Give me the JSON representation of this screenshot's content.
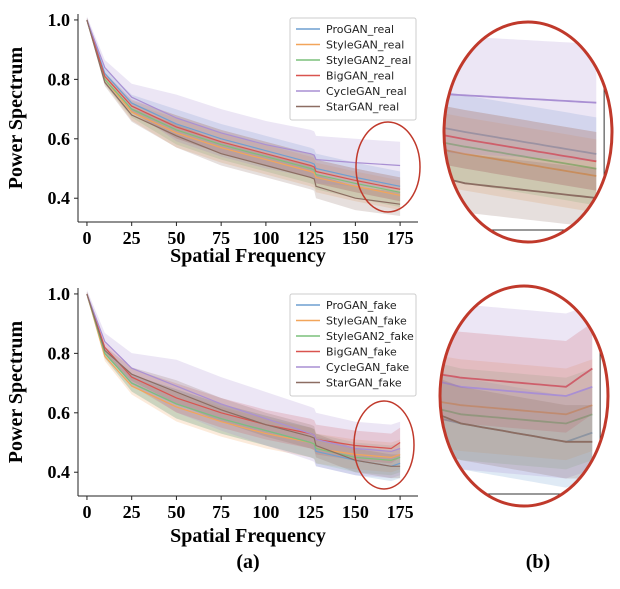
{
  "figure": {
    "panel_labels": [
      "(a)",
      "(b)"
    ]
  },
  "colors": {
    "ProGAN": "#6f9fd0",
    "StyleGAN": "#f2a55a",
    "StyleGAN2": "#7cc07c",
    "BigGAN": "#d9534f",
    "CycleGAN": "#a98fd3",
    "StarGAN": "#8c6d62",
    "zoom_ellipse": "#c0392b"
  },
  "chart_data": [
    {
      "type": "line",
      "xlabel": "Spatial Frequency",
      "ylabel": "Power Spectrum",
      "xlim": [
        -5,
        185
      ],
      "ylim": [
        0.32,
        1.02
      ],
      "xticks": [
        0,
        25,
        50,
        75,
        100,
        125,
        150,
        175
      ],
      "yticks": [
        0.4,
        0.6,
        0.8,
        1.0
      ],
      "legend_position": "top-right",
      "series": [
        {
          "name": "ProGAN_real",
          "color": "#6f9fd0",
          "x": [
            0,
            10,
            25,
            50,
            75,
            100,
            125,
            127,
            128,
            150,
            175
          ],
          "y": [
            1.0,
            0.82,
            0.72,
            0.65,
            0.6,
            0.56,
            0.52,
            0.515,
            0.5,
            0.47,
            0.44
          ],
          "band": 0.05
        },
        {
          "name": "StyleGAN_real",
          "color": "#f2a55a",
          "x": [
            0,
            10,
            25,
            50,
            75,
            100,
            125,
            127,
            128,
            150,
            175
          ],
          "y": [
            1.0,
            0.8,
            0.69,
            0.62,
            0.57,
            0.53,
            0.49,
            0.485,
            0.47,
            0.44,
            0.41
          ],
          "band": 0.05
        },
        {
          "name": "StyleGAN2_real",
          "color": "#7cc07c",
          "x": [
            0,
            10,
            25,
            50,
            75,
            100,
            125,
            127,
            128,
            150,
            175
          ],
          "y": [
            1.0,
            0.8,
            0.7,
            0.63,
            0.58,
            0.54,
            0.5,
            0.495,
            0.48,
            0.45,
            0.42
          ],
          "band": 0.05
        },
        {
          "name": "BigGAN_real",
          "color": "#d9534f",
          "x": [
            0,
            10,
            25,
            50,
            75,
            100,
            125,
            127,
            128,
            150,
            175
          ],
          "y": [
            1.0,
            0.81,
            0.71,
            0.64,
            0.59,
            0.55,
            0.51,
            0.505,
            0.49,
            0.46,
            0.43
          ],
          "band": 0.04
        },
        {
          "name": "CycleGAN_real",
          "color": "#a98fd3",
          "x": [
            0,
            10,
            25,
            50,
            75,
            100,
            125,
            127,
            128,
            150,
            175
          ],
          "y": [
            1.0,
            0.84,
            0.74,
            0.67,
            0.62,
            0.58,
            0.55,
            0.545,
            0.53,
            0.52,
            0.51
          ],
          "band": 0.08
        },
        {
          "name": "StarGAN_real",
          "color": "#8c6d62",
          "x": [
            0,
            10,
            25,
            50,
            75,
            100,
            125,
            127,
            128,
            150,
            175
          ],
          "y": [
            1.0,
            0.79,
            0.68,
            0.61,
            0.55,
            0.51,
            0.47,
            0.465,
            0.44,
            0.4,
            0.38
          ],
          "band": 0.04
        }
      ]
    },
    {
      "type": "line",
      "xlabel": "Spatial Frequency",
      "ylabel": "Power Spectrum",
      "xlim": [
        -5,
        185
      ],
      "ylim": [
        0.32,
        1.02
      ],
      "xticks": [
        0,
        25,
        50,
        75,
        100,
        125,
        150,
        175
      ],
      "yticks": [
        0.4,
        0.6,
        0.8,
        1.0
      ],
      "legend_position": "top-right",
      "series": [
        {
          "name": "ProGAN_fake",
          "color": "#6f9fd0",
          "x": [
            0,
            10,
            25,
            50,
            75,
            100,
            125,
            127,
            128,
            150,
            170,
            175
          ],
          "y": [
            1.0,
            0.8,
            0.7,
            0.63,
            0.58,
            0.54,
            0.5,
            0.495,
            0.47,
            0.44,
            0.42,
            0.43
          ],
          "band": 0.05
        },
        {
          "name": "StyleGAN_fake",
          "color": "#f2a55a",
          "x": [
            0,
            10,
            25,
            50,
            75,
            100,
            125,
            127,
            128,
            150,
            170,
            175
          ],
          "y": [
            1.0,
            0.79,
            0.69,
            0.62,
            0.57,
            0.53,
            0.5,
            0.495,
            0.48,
            0.46,
            0.45,
            0.46
          ],
          "band": 0.05
        },
        {
          "name": "StyleGAN2_fake",
          "color": "#7cc07c",
          "x": [
            0,
            10,
            25,
            50,
            75,
            100,
            125,
            127,
            128,
            150,
            170,
            175
          ],
          "y": [
            1.0,
            0.8,
            0.7,
            0.63,
            0.58,
            0.54,
            0.5,
            0.495,
            0.48,
            0.45,
            0.44,
            0.45
          ],
          "band": 0.05
        },
        {
          "name": "BigGAN_fake",
          "color": "#d9534f",
          "x": [
            0,
            10,
            25,
            50,
            75,
            100,
            125,
            127,
            128,
            150,
            170,
            175
          ],
          "y": [
            1.0,
            0.82,
            0.72,
            0.65,
            0.6,
            0.56,
            0.53,
            0.525,
            0.51,
            0.49,
            0.48,
            0.5
          ],
          "band": 0.05
        },
        {
          "name": "CycleGAN_fake",
          "color": "#a98fd3",
          "x": [
            0,
            10,
            25,
            50,
            75,
            100,
            125,
            127,
            128,
            150,
            170,
            175
          ],
          "y": [
            1.0,
            0.84,
            0.75,
            0.69,
            0.63,
            0.58,
            0.53,
            0.525,
            0.51,
            0.48,
            0.47,
            0.48
          ],
          "band": 0.09
        },
        {
          "name": "StarGAN_fake",
          "color": "#8c6d62",
          "x": [
            0,
            10,
            25,
            50,
            75,
            100,
            125,
            127,
            128,
            150,
            170,
            175
          ],
          "y": [
            1.0,
            0.81,
            0.73,
            0.67,
            0.61,
            0.56,
            0.52,
            0.515,
            0.49,
            0.44,
            0.42,
            0.42
          ],
          "band": 0.04
        }
      ]
    }
  ]
}
